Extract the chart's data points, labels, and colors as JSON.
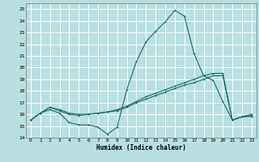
{
  "title": "",
  "xlabel": "Humidex (Indice chaleur)",
  "bg_color": "#b8e0e0",
  "grid_color": "#ffffff",
  "line_color": "#1a6b6b",
  "xlim": [
    -0.5,
    23.5
  ],
  "ylim": [
    14,
    25.5
  ],
  "yticks": [
    14,
    15,
    16,
    17,
    18,
    19,
    20,
    21,
    22,
    23,
    24,
    25
  ],
  "xticks": [
    0,
    1,
    2,
    3,
    4,
    5,
    6,
    7,
    8,
    9,
    10,
    11,
    12,
    13,
    14,
    15,
    16,
    17,
    18,
    19,
    20,
    21,
    22,
    23
  ],
  "curve1_y": [
    15.5,
    16.1,
    16.4,
    16.1,
    15.3,
    15.1,
    15.1,
    14.9,
    14.3,
    14.9,
    18.1,
    20.5,
    22.2,
    23.1,
    23.9,
    24.9,
    24.4,
    21.2,
    19.3,
    18.9,
    17.1,
    15.5,
    15.8,
    15.8
  ],
  "curve2_y": [
    15.5,
    16.1,
    16.6,
    16.3,
    16.0,
    15.9,
    16.0,
    16.1,
    16.2,
    16.3,
    16.6,
    17.0,
    17.3,
    17.6,
    17.9,
    18.2,
    18.5,
    18.7,
    19.0,
    19.3,
    19.3,
    15.5,
    15.8,
    15.9
  ],
  "curve3_y": [
    15.5,
    16.1,
    16.6,
    16.4,
    16.1,
    16.0,
    16.0,
    16.1,
    16.2,
    16.4,
    16.7,
    17.1,
    17.5,
    17.8,
    18.1,
    18.4,
    18.7,
    19.0,
    19.3,
    19.5,
    19.5,
    15.5,
    15.8,
    16.0
  ]
}
